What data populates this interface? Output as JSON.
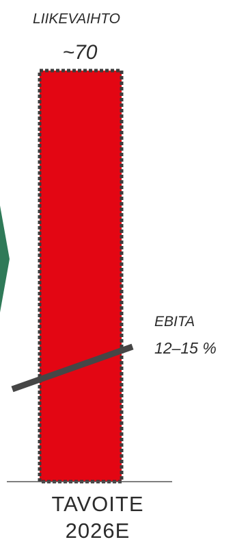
{
  "chart_data": {
    "type": "bar",
    "categories": [
      "TAVOITE 2026E"
    ],
    "category_lines": [
      [
        "TAVOITE",
        "2026E"
      ]
    ],
    "series": [
      {
        "name": "LIIKEVAIHTO",
        "values": [
          70
        ],
        "value_label": "~70",
        "color": "#e30613",
        "border_color": "#3c3c3c",
        "border_style": "dotted"
      }
    ],
    "annotations": [
      {
        "name": "EBITA",
        "text": "12–15 %",
        "type": "trend-line",
        "color": "#464646"
      }
    ],
    "side_shape": {
      "color": "#2f7a58",
      "kind": "chevron-partial"
    },
    "ylim": [
      0,
      70
    ],
    "grid": false,
    "legend": "none",
    "baseline_color": "#555555"
  }
}
